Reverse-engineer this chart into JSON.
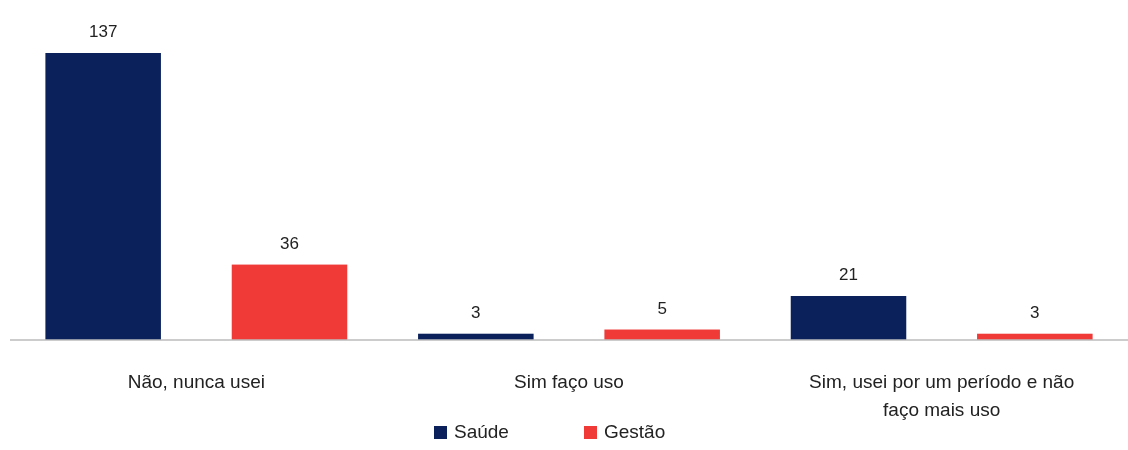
{
  "chart_data": {
    "type": "bar",
    "categories": [
      "Não, nunca usei",
      "Sim faço uso",
      "Sim, usei por um período e não faço mais uso"
    ],
    "series": [
      {
        "name": "Saúde",
        "color": "#0a215c",
        "values": [
          137,
          3,
          21
        ]
      },
      {
        "name": "Gestão",
        "color": "#ef3a38",
        "values": [
          36,
          5,
          3
        ]
      }
    ],
    "data_labels": true,
    "legend": "bottom"
  }
}
